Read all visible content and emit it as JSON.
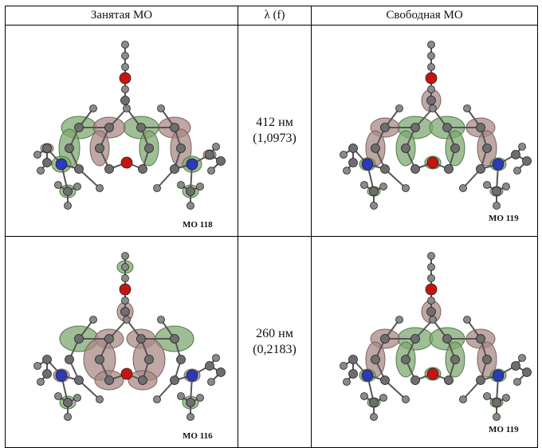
{
  "headers": {
    "occupied": "Занятая МО",
    "lambda": "λ (f)",
    "vacant": "Свободная МО"
  },
  "rows": [
    {
      "occupied_caption": "MO 118",
      "lambda_nm": "412 нм",
      "oscillator": "(1,0973)",
      "vacant_caption": "MO 119"
    },
    {
      "occupied_caption": "MO 116",
      "lambda_nm": "260 нм",
      "oscillator": "(0,2183)",
      "vacant_caption": "MO 119"
    }
  ],
  "colors": {
    "lobe_green": "#7fa872",
    "lobe_mauve": "#a88a86",
    "carbon": "#6e6e6e",
    "oxygen": "#c8140f",
    "nitrogen": "#2b3ab8"
  }
}
